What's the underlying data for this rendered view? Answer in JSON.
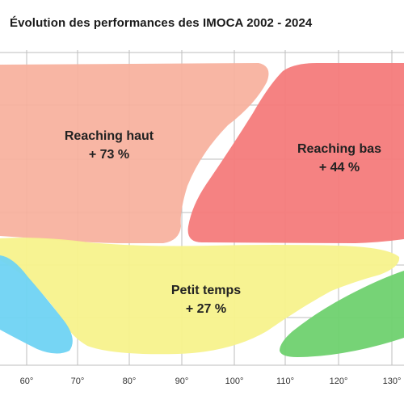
{
  "title": "Évolution des performances des IMOCA 2002 - 2024",
  "x_ticks": [
    "60°",
    "70°",
    "80°",
    "90°",
    "100°",
    "110°",
    "120°",
    "130°"
  ],
  "zones": [
    {
      "id": "reaching-haut",
      "name": "Reaching haut",
      "gain": "+ 73 %",
      "color": "#f7b09c"
    },
    {
      "id": "reaching-bas",
      "name": "Reaching bas",
      "gain": "+ 44 %",
      "color": "#f47b7b"
    },
    {
      "id": "petit-temps",
      "name": "Petit temps",
      "gain": "+ 27 %",
      "color": "#f7f28c"
    },
    {
      "id": "left-zone",
      "name": "",
      "gain": "",
      "color": "#6fd3f3"
    },
    {
      "id": "right-zone",
      "name": "",
      "gain": "",
      "color": "#6fd16f"
    }
  ],
  "grid_color": "#bdbdbd"
}
